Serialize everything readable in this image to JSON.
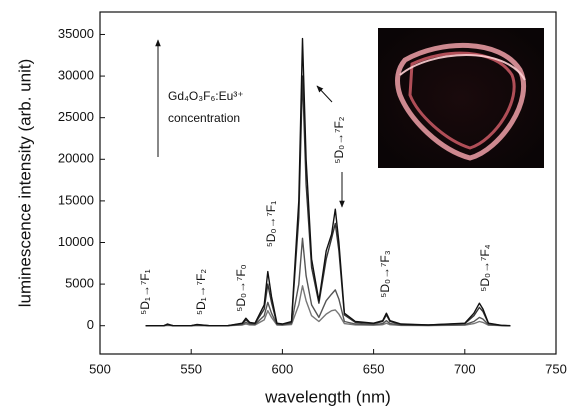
{
  "chart_data": {
    "type": "line",
    "xlabel": "wavelength (nm)",
    "ylabel": "luminescence intensity (arb. unit)",
    "xlim": [
      500,
      750
    ],
    "xticks": [
      500,
      550,
      600,
      650,
      700,
      750
    ],
    "ylim": [
      -3400,
      37700
    ],
    "yticks": [
      0,
      5000,
      10000,
      15000,
      20000,
      25000,
      30000,
      35000
    ],
    "x": [
      525,
      535,
      537,
      540,
      550,
      553,
      560,
      570,
      578,
      580,
      582,
      585,
      590,
      592,
      594,
      597,
      600,
      605,
      609,
      611,
      613,
      616,
      620,
      624,
      627,
      629,
      631,
      634,
      640,
      650,
      655,
      657,
      659,
      665,
      680,
      700,
      705,
      708,
      710,
      713,
      720,
      725
    ],
    "series": [
      {
        "color": "#111111",
        "values": [
          0,
          0,
          200,
          0,
          0,
          150,
          0,
          0,
          300,
          900,
          400,
          300,
          2500,
          6500,
          3500,
          300,
          200,
          500,
          15000,
          34500,
          20000,
          8000,
          3000,
          9000,
          11000,
          14000,
          10000,
          1500,
          500,
          300,
          600,
          1500,
          600,
          200,
          100,
          300,
          1500,
          2700,
          2000,
          300,
          50,
          0
        ]
      },
      {
        "color": "#333333",
        "values": [
          0,
          0,
          150,
          0,
          0,
          120,
          0,
          0,
          250,
          700,
          350,
          250,
          2000,
          5000,
          2800,
          250,
          180,
          400,
          13000,
          30000,
          17000,
          7000,
          2700,
          8000,
          10500,
          12300,
          9000,
          1300,
          400,
          250,
          500,
          1300,
          500,
          150,
          80,
          250,
          1200,
          2200,
          1700,
          250,
          40,
          0
        ]
      },
      {
        "color": "#555555",
        "values": [
          0,
          0,
          80,
          0,
          0,
          60,
          0,
          0,
          150,
          400,
          200,
          150,
          1200,
          2800,
          1500,
          150,
          100,
          250,
          5000,
          10500,
          6000,
          2500,
          1000,
          3000,
          3800,
          4300,
          3200,
          500,
          200,
          120,
          250,
          600,
          250,
          80,
          40,
          120,
          500,
          1000,
          800,
          120,
          20,
          0
        ]
      },
      {
        "color": "#777777",
        "values": [
          0,
          0,
          40,
          0,
          0,
          30,
          0,
          0,
          80,
          200,
          100,
          80,
          700,
          1800,
          1000,
          80,
          60,
          150,
          2500,
          4800,
          3000,
          1200,
          500,
          1400,
          1800,
          1900,
          1400,
          250,
          100,
          60,
          120,
          300,
          120,
          40,
          20,
          60,
          250,
          500,
          400,
          60,
          10,
          0
        ]
      }
    ],
    "annotations": [
      "⁵D₁→⁷F₁",
      "⁵D₁→⁷F₂",
      "⁵D₀→⁷F₀",
      "⁵D₀→⁷F₁",
      "⁵D₀→⁷F₂",
      "⁵D₀→⁷F₃",
      "⁵D₀→⁷F₄",
      "Gd₄O₃F₆:Eu³⁺",
      "concentration"
    ]
  }
}
